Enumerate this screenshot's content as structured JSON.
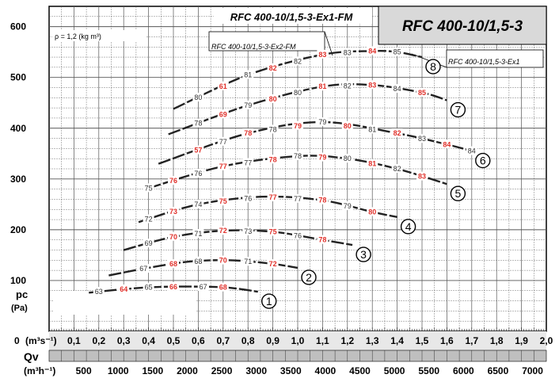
{
  "titles": {
    "main": "RFC 400-10/1,5-3",
    "top": "RFC 400-10/1,5-3-Ex1-FM",
    "ex2": "RFC 400-10/1,5-3-Ex2-FM",
    "ex1": "RFC 400-10/1,5-3-Ex1"
  },
  "density_note": "ρ = 1,2 (kg m³)",
  "axis_labels": {
    "y_main": "pc",
    "y_unit": "(Pa)",
    "x_zero": "0",
    "x_unit1": "(m³s⁻¹)",
    "q_main": "Qv",
    "x_unit2": "(m³h⁻¹)"
  },
  "chart_data": {
    "type": "line",
    "title": "RFC 400-10/1,5-3",
    "xlabel": "Qv (m³s⁻¹)",
    "ylabel": "pc (Pa)",
    "xlim": [
      0,
      2.0
    ],
    "ylim": [
      0,
      640
    ],
    "x_ticks": [
      "0,1",
      "0,2",
      "0,3",
      "0,4",
      "0,5",
      "0,6",
      "0,7",
      "0,8",
      "0,9",
      "1,0",
      "1,1",
      "1,2",
      "1,3",
      "1,4",
      "1,5",
      "1,6",
      "1,7",
      "1,8",
      "1,9",
      "2,0"
    ],
    "x2_ticks": [
      "500",
      "1000",
      "1500",
      "2000",
      "2500",
      "3000",
      "3500",
      "4000",
      "4500",
      "5000",
      "5500",
      "6000",
      "6500",
      "7000"
    ],
    "y_ticks": [
      "100",
      "200",
      "300",
      "400",
      "500",
      "600"
    ],
    "series": [
      {
        "name": "1",
        "x": [
          0.16,
          0.28,
          0.42,
          0.58,
          0.72,
          0.84
        ],
        "y": [
          76,
          82,
          87,
          88,
          86,
          78
        ],
        "labels": [
          {
            "x": 0.2,
            "t": "63"
          },
          {
            "x": 0.3,
            "t": "64",
            "red": true
          },
          {
            "x": 0.4,
            "t": "65"
          },
          {
            "x": 0.5,
            "t": "66",
            "red": true
          },
          {
            "x": 0.62,
            "t": "67"
          },
          {
            "x": 0.7,
            "t": "68",
            "red": true
          }
        ]
      },
      {
        "name": "2",
        "x": [
          0.24,
          0.4,
          0.56,
          0.72,
          0.88,
          1.0
        ],
        "y": [
          110,
          125,
          137,
          140,
          134,
          125
        ],
        "labels": [
          {
            "x": 0.38,
            "t": "67"
          },
          {
            "x": 0.5,
            "t": "68",
            "red": true
          },
          {
            "x": 0.6,
            "t": "68"
          },
          {
            "x": 0.7,
            "t": "70",
            "red": true
          },
          {
            "x": 0.8,
            "t": "71"
          },
          {
            "x": 0.9,
            "t": "72",
            "red": true
          }
        ]
      },
      {
        "name": "3",
        "x": [
          0.3,
          0.5,
          0.7,
          0.9,
          1.1,
          1.22
        ],
        "y": [
          160,
          186,
          198,
          196,
          180,
          170
        ],
        "labels": [
          {
            "x": 0.4,
            "t": "69"
          },
          {
            "x": 0.5,
            "t": "70",
            "red": true
          },
          {
            "x": 0.6,
            "t": "71"
          },
          {
            "x": 0.7,
            "t": "72",
            "red": true
          },
          {
            "x": 0.8,
            "t": "73"
          },
          {
            "x": 0.9,
            "t": "75",
            "red": true
          },
          {
            "x": 1.0,
            "t": "76"
          },
          {
            "x": 1.1,
            "t": "78",
            "red": true
          }
        ]
      },
      {
        "name": "4",
        "x": [
          0.36,
          0.6,
          0.86,
          1.1,
          1.3,
          1.4
        ],
        "y": [
          215,
          250,
          265,
          258,
          235,
          225
        ],
        "labels": [
          {
            "x": 0.4,
            "t": "72"
          },
          {
            "x": 0.5,
            "t": "73",
            "red": true
          },
          {
            "x": 0.6,
            "t": "74"
          },
          {
            "x": 0.7,
            "t": "75",
            "red": true
          },
          {
            "x": 0.8,
            "t": "76"
          },
          {
            "x": 0.9,
            "t": "77",
            "red": true
          },
          {
            "x": 1.0,
            "t": "77"
          },
          {
            "x": 1.1,
            "t": "78",
            "red": true
          },
          {
            "x": 1.2,
            "t": "79"
          },
          {
            "x": 1.3,
            "t": "80",
            "red": true
          }
        ]
      },
      {
        "name": "5",
        "x": [
          0.4,
          0.7,
          1.0,
          1.2,
          1.4,
          1.6
        ],
        "y": [
          282,
          325,
          345,
          340,
          320,
          290
        ],
        "labels": [
          {
            "x": 0.4,
            "t": "75"
          },
          {
            "x": 0.5,
            "t": "76",
            "red": true
          },
          {
            "x": 0.6,
            "t": "76"
          },
          {
            "x": 0.7,
            "t": "77",
            "red": true
          },
          {
            "x": 0.8,
            "t": "77"
          },
          {
            "x": 0.9,
            "t": "78",
            "red": true
          },
          {
            "x": 1.0,
            "t": "78"
          },
          {
            "x": 1.1,
            "t": "79",
            "red": true
          },
          {
            "x": 1.2,
            "t": "80"
          },
          {
            "x": 1.3,
            "t": "81",
            "red": true
          },
          {
            "x": 1.4,
            "t": "82"
          },
          {
            "x": 1.5,
            "t": "83",
            "red": true
          }
        ]
      },
      {
        "name": "6",
        "x": [
          0.44,
          0.8,
          1.1,
          1.4,
          1.6,
          1.7
        ],
        "y": [
          330,
          390,
          412,
          390,
          368,
          355
        ],
        "labels": [
          {
            "x": 0.6,
            "t": "57",
            "red": true
          },
          {
            "x": 0.7,
            "t": "77"
          },
          {
            "x": 0.8,
            "t": "78",
            "red": true
          },
          {
            "x": 0.9,
            "t": "78"
          },
          {
            "x": 1.0,
            "t": "79",
            "red": true
          },
          {
            "x": 1.1,
            "t": "79"
          },
          {
            "x": 1.2,
            "t": "80",
            "red": true
          },
          {
            "x": 1.3,
            "t": "81"
          },
          {
            "x": 1.4,
            "t": "82",
            "red": true
          },
          {
            "x": 1.5,
            "t": "83"
          },
          {
            "x": 1.6,
            "t": "84",
            "red": true
          },
          {
            "x": 1.7,
            "t": "84"
          }
        ]
      },
      {
        "name": "7",
        "x": [
          0.48,
          0.8,
          1.1,
          1.3,
          1.5,
          1.6
        ],
        "y": [
          388,
          445,
          482,
          485,
          470,
          455
        ],
        "labels": [
          {
            "x": 0.6,
            "t": "78"
          },
          {
            "x": 0.7,
            "t": "69",
            "red": true
          },
          {
            "x": 0.8,
            "t": "79"
          },
          {
            "x": 0.9,
            "t": "80",
            "red": true
          },
          {
            "x": 1.0,
            "t": "80"
          },
          {
            "x": 1.1,
            "t": "81",
            "red": true
          },
          {
            "x": 1.2,
            "t": "82"
          },
          {
            "x": 1.3,
            "t": "83",
            "red": true
          },
          {
            "x": 1.4,
            "t": "84"
          },
          {
            "x": 1.5,
            "t": "85",
            "red": true
          }
        ]
      },
      {
        "name": "8",
        "x": [
          0.5,
          0.8,
          1.1,
          1.3,
          1.4,
          1.5
        ],
        "y": [
          438,
          505,
          545,
          552,
          550,
          540
        ],
        "labels": [
          {
            "x": 0.6,
            "t": "80"
          },
          {
            "x": 0.7,
            "t": "61",
            "red": true
          },
          {
            "x": 0.8,
            "t": "81"
          },
          {
            "x": 0.9,
            "t": "82",
            "red": true
          },
          {
            "x": 1.0,
            "t": "82"
          },
          {
            "x": 1.1,
            "t": "83",
            "red": true
          },
          {
            "x": 1.2,
            "t": "83"
          },
          {
            "x": 1.3,
            "t": "84",
            "red": true
          },
          {
            "x": 1.4,
            "t": "85"
          }
        ]
      }
    ]
  }
}
